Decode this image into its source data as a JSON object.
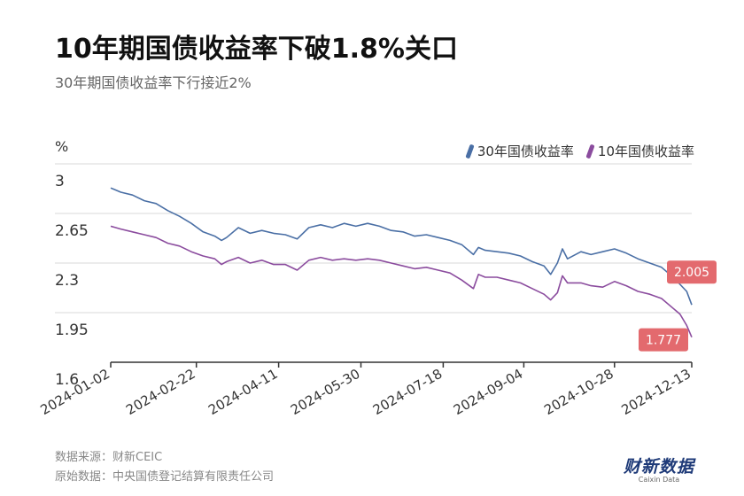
{
  "header": {
    "title": "10年期国债收益率下破1.8%关口",
    "subtitle": "30年期国债收益率下行接近2%"
  },
  "footer": {
    "source": "数据来源：财新CEIC",
    "origin": "原始数据：中央国债登记结算有限责任公司"
  },
  "brand": {
    "name": "财新数据",
    "name_en": "Caixin Data"
  },
  "colors": {
    "series30": "#4a6fa5",
    "series10": "#8b4c9e",
    "label_bg": "#e36a6e",
    "axis": "#333333",
    "grid": "#d9d9d9"
  },
  "chart_data": {
    "type": "line",
    "ylabel": "%",
    "ylim": [
      1.6,
      3
    ],
    "yticks": [
      3,
      2.65,
      2.3,
      1.95,
      1.6
    ],
    "xticks": [
      "2024-01-02",
      "2024-02-22",
      "2024-04-11",
      "2024-05-30",
      "2024-07-18",
      "2024-09-04",
      "2024-10-28",
      "2024-12-13"
    ],
    "x_start": "2024-01-02",
    "x_end": "2024-12-13",
    "legend": "top-right",
    "grid": true,
    "series": [
      {
        "name": "30年国债收益率",
        "color": "#4a6fa5",
        "end_label": "2.005",
        "points": [
          [
            "2024-01-02",
            2.83
          ],
          [
            "2024-01-08",
            2.8
          ],
          [
            "2024-01-15",
            2.78
          ],
          [
            "2024-01-22",
            2.74
          ],
          [
            "2024-01-29",
            2.72
          ],
          [
            "2024-02-05",
            2.67
          ],
          [
            "2024-02-12",
            2.63
          ],
          [
            "2024-02-19",
            2.58
          ],
          [
            "2024-02-26",
            2.52
          ],
          [
            "2024-03-04",
            2.49
          ],
          [
            "2024-03-08",
            2.46
          ],
          [
            "2024-03-11",
            2.48
          ],
          [
            "2024-03-18",
            2.55
          ],
          [
            "2024-03-25",
            2.51
          ],
          [
            "2024-04-01",
            2.53
          ],
          [
            "2024-04-08",
            2.51
          ],
          [
            "2024-04-15",
            2.5
          ],
          [
            "2024-04-22",
            2.47
          ],
          [
            "2024-04-29",
            2.55
          ],
          [
            "2024-05-06",
            2.57
          ],
          [
            "2024-05-13",
            2.55
          ],
          [
            "2024-05-20",
            2.58
          ],
          [
            "2024-05-27",
            2.56
          ],
          [
            "2024-06-03",
            2.58
          ],
          [
            "2024-06-10",
            2.56
          ],
          [
            "2024-06-17",
            2.53
          ],
          [
            "2024-06-24",
            2.52
          ],
          [
            "2024-07-01",
            2.49
          ],
          [
            "2024-07-08",
            2.5
          ],
          [
            "2024-07-15",
            2.48
          ],
          [
            "2024-07-22",
            2.46
          ],
          [
            "2024-07-29",
            2.43
          ],
          [
            "2024-08-05",
            2.36
          ],
          [
            "2024-08-08",
            2.41
          ],
          [
            "2024-08-12",
            2.39
          ],
          [
            "2024-08-19",
            2.38
          ],
          [
            "2024-08-26",
            2.37
          ],
          [
            "2024-09-02",
            2.35
          ],
          [
            "2024-09-09",
            2.31
          ],
          [
            "2024-09-16",
            2.28
          ],
          [
            "2024-09-20",
            2.22
          ],
          [
            "2024-09-24",
            2.3
          ],
          [
            "2024-09-27",
            2.4
          ],
          [
            "2024-09-30",
            2.33
          ],
          [
            "2024-10-08",
            2.38
          ],
          [
            "2024-10-14",
            2.36
          ],
          [
            "2024-10-21",
            2.38
          ],
          [
            "2024-10-28",
            2.4
          ],
          [
            "2024-11-04",
            2.37
          ],
          [
            "2024-11-11",
            2.33
          ],
          [
            "2024-11-18",
            2.3
          ],
          [
            "2024-11-25",
            2.27
          ],
          [
            "2024-12-02",
            2.2
          ],
          [
            "2024-12-06",
            2.15
          ],
          [
            "2024-12-10",
            2.1
          ],
          [
            "2024-12-13",
            2.005
          ]
        ]
      },
      {
        "name": "10年国债收益率",
        "color": "#8b4c9e",
        "end_label": "1.777",
        "points": [
          [
            "2024-01-02",
            2.56
          ],
          [
            "2024-01-08",
            2.54
          ],
          [
            "2024-01-15",
            2.52
          ],
          [
            "2024-01-22",
            2.5
          ],
          [
            "2024-01-29",
            2.48
          ],
          [
            "2024-02-05",
            2.44
          ],
          [
            "2024-02-12",
            2.42
          ],
          [
            "2024-02-19",
            2.38
          ],
          [
            "2024-02-26",
            2.35
          ],
          [
            "2024-03-04",
            2.33
          ],
          [
            "2024-03-08",
            2.29
          ],
          [
            "2024-03-11",
            2.31
          ],
          [
            "2024-03-18",
            2.34
          ],
          [
            "2024-03-25",
            2.3
          ],
          [
            "2024-04-01",
            2.32
          ],
          [
            "2024-04-08",
            2.29
          ],
          [
            "2024-04-15",
            2.29
          ],
          [
            "2024-04-22",
            2.25
          ],
          [
            "2024-04-29",
            2.32
          ],
          [
            "2024-05-06",
            2.34
          ],
          [
            "2024-05-13",
            2.32
          ],
          [
            "2024-05-20",
            2.33
          ],
          [
            "2024-05-27",
            2.32
          ],
          [
            "2024-06-03",
            2.33
          ],
          [
            "2024-06-10",
            2.32
          ],
          [
            "2024-06-17",
            2.3
          ],
          [
            "2024-06-24",
            2.28
          ],
          [
            "2024-07-01",
            2.26
          ],
          [
            "2024-07-08",
            2.27
          ],
          [
            "2024-07-15",
            2.25
          ],
          [
            "2024-07-22",
            2.23
          ],
          [
            "2024-07-29",
            2.18
          ],
          [
            "2024-08-05",
            2.12
          ],
          [
            "2024-08-08",
            2.22
          ],
          [
            "2024-08-12",
            2.2
          ],
          [
            "2024-08-19",
            2.2
          ],
          [
            "2024-08-26",
            2.18
          ],
          [
            "2024-09-02",
            2.16
          ],
          [
            "2024-09-09",
            2.12
          ],
          [
            "2024-09-16",
            2.08
          ],
          [
            "2024-09-20",
            2.04
          ],
          [
            "2024-09-24",
            2.09
          ],
          [
            "2024-09-27",
            2.21
          ],
          [
            "2024-09-30",
            2.16
          ],
          [
            "2024-10-08",
            2.16
          ],
          [
            "2024-10-14",
            2.14
          ],
          [
            "2024-10-21",
            2.13
          ],
          [
            "2024-10-28",
            2.17
          ],
          [
            "2024-11-04",
            2.14
          ],
          [
            "2024-11-11",
            2.1
          ],
          [
            "2024-11-18",
            2.08
          ],
          [
            "2024-11-25",
            2.05
          ],
          [
            "2024-12-02",
            1.98
          ],
          [
            "2024-12-06",
            1.94
          ],
          [
            "2024-12-10",
            1.86
          ],
          [
            "2024-12-13",
            1.777
          ]
        ]
      }
    ]
  }
}
